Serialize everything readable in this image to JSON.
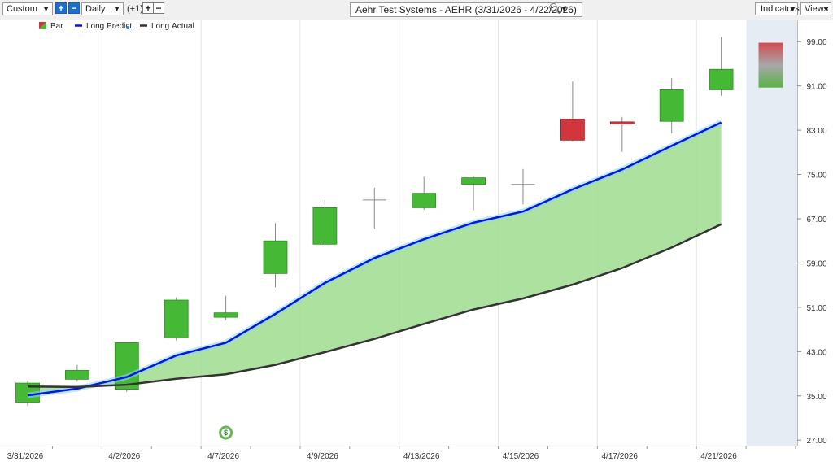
{
  "toolbar": {
    "template_select": "Custom",
    "period_select": "Daily",
    "period_offset": "(+1)",
    "chart_title": "Aehr Test Systems - AEHR (3/31/2026 - 4/22/2026)",
    "indicators_button": "Indicators",
    "views_button": "Views"
  },
  "colors": {
    "up": "#45b935",
    "down": "#d0363b",
    "predict": "#0018e0",
    "actual": "#333333",
    "fill": "#9fdc8e",
    "future": "#e6ecf4"
  },
  "chart_data": {
    "type": "candlestick",
    "legend": [
      {
        "label": "Bar",
        "icon": "up-down-bar-icon"
      },
      {
        "label": "Long.Predict",
        "icon": "blue-line-icon"
      },
      {
        "label": "Long.Actual",
        "icon": "dark-line-icon"
      }
    ],
    "x_tick_labels": [
      "3/31/2026",
      "4/2/2026",
      "4/7/2026",
      "4/9/2026",
      "4/13/2026",
      "4/15/2026",
      "4/17/2026",
      "4/21/2026"
    ],
    "x_tick_bar_index": [
      0,
      2,
      4,
      6,
      8,
      10,
      12,
      14
    ],
    "y_ticks": [
      27.0,
      35.0,
      43.0,
      51.0,
      59.0,
      67.0,
      75.0,
      83.0,
      91.0,
      99.0
    ],
    "y_tick_labels": [
      "27.00",
      "35.00",
      "43.00",
      "51.00",
      "59.00",
      "67.00",
      "75.00",
      "83.00",
      "91.00",
      "99.00"
    ],
    "ylim": [
      26,
      103
    ],
    "bars": [
      {
        "date": "3/31/2026",
        "open": 33.8,
        "high": 37.7,
        "low": 33.2,
        "close": 37.3
      },
      {
        "date": "4/1/2026",
        "open": 38.0,
        "high": 40.6,
        "low": 37.6,
        "close": 39.6
      },
      {
        "date": "4/2/2026",
        "open": 36.2,
        "high": 44.6,
        "low": 35.7,
        "close": 44.6
      },
      {
        "date": "4/6/2026",
        "open": 45.5,
        "high": 52.8,
        "low": 45.0,
        "close": 52.3
      },
      {
        "date": "4/7/2026",
        "open": 49.2,
        "high": 53.1,
        "low": 48.7,
        "close": 50.0
      },
      {
        "date": "4/8/2026",
        "open": 57.1,
        "high": 66.2,
        "low": 54.6,
        "close": 63.0
      },
      {
        "date": "4/9/2026",
        "open": 62.4,
        "high": 70.4,
        "low": 62.0,
        "close": 69.0
      },
      {
        "date": "4/10/2026",
        "open": 70.3,
        "high": 72.6,
        "low": 65.2,
        "close": 70.4
      },
      {
        "date": "4/13/2026",
        "open": 69.0,
        "high": 74.6,
        "low": 68.6,
        "close": 71.6
      },
      {
        "date": "4/14/2026",
        "open": 73.2,
        "high": 74.7,
        "low": 68.5,
        "close": 74.4
      },
      {
        "date": "4/15/2026",
        "open": 73.2,
        "high": 76.0,
        "low": 69.6,
        "close": 73.2
      },
      {
        "date": "4/16/2026",
        "open": 85.0,
        "high": 91.8,
        "low": 81.0,
        "close": 81.2
      },
      {
        "date": "4/17/2026",
        "open": 84.5,
        "high": 85.4,
        "low": 79.1,
        "close": 84.1
      },
      {
        "date": "4/20/2026",
        "open": 84.6,
        "high": 92.4,
        "low": 82.4,
        "close": 90.3
      },
      {
        "date": "4/21/2026",
        "open": 90.3,
        "high": 99.8,
        "low": 89.2,
        "close": 94.0
      }
    ],
    "forecast_bar": {
      "date": "4/22/2026",
      "top": 98.8,
      "bottom": 90.7
    },
    "series": [
      {
        "name": "Long.Predict",
        "values": [
          35.1,
          36.3,
          38.4,
          42.3,
          44.6,
          49.8,
          55.4,
          59.9,
          63.3,
          66.3,
          68.3,
          72.3,
          75.9,
          80.2,
          84.4
        ]
      },
      {
        "name": "Long.Actual",
        "values": [
          36.7,
          36.6,
          37.0,
          38.1,
          38.9,
          40.6,
          42.9,
          45.3,
          48.0,
          50.6,
          52.6,
          55.1,
          58.1,
          61.8,
          66.0
        ]
      }
    ],
    "signal_marker": {
      "date": "4/7/2026",
      "symbol": "$"
    }
  }
}
